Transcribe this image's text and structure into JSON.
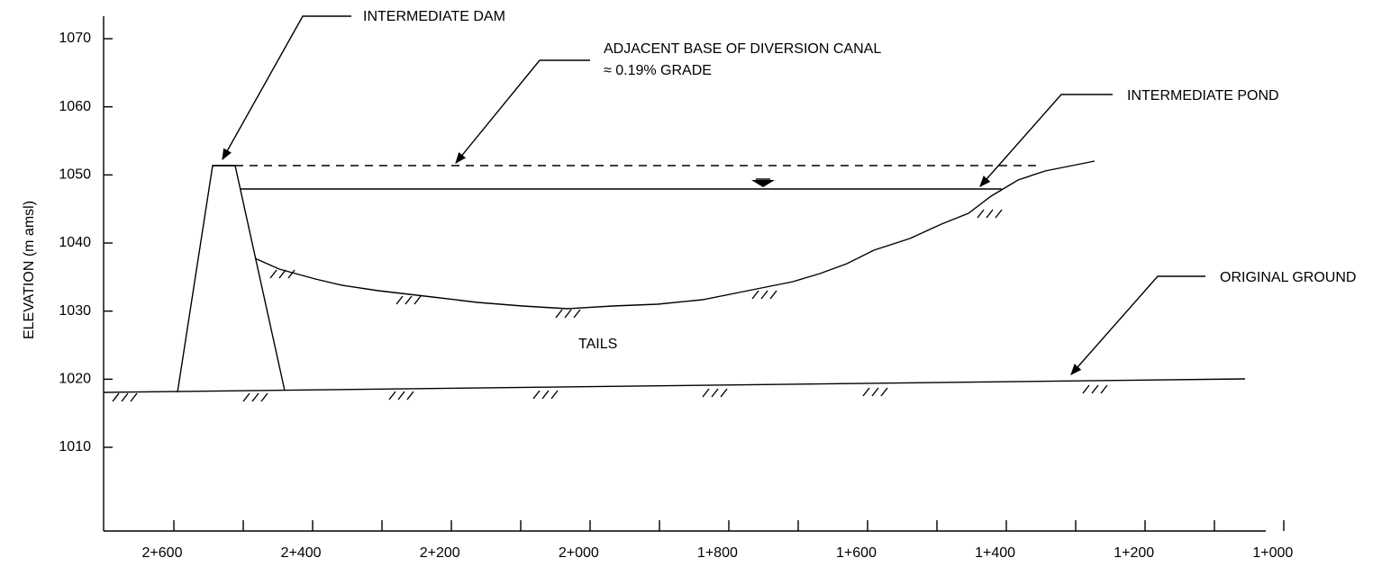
{
  "axes": {
    "y_label": "ELEVATION (m amsl)",
    "yticks": [
      1010,
      1020,
      1030,
      1040,
      1050,
      1060,
      1070
    ],
    "xticks": [
      "2+600",
      "2+400",
      "2+200",
      "2+000",
      "1+800",
      "1+600",
      "1+400",
      "1+200",
      "1+000"
    ]
  },
  "annotations": {
    "dam": "INTERMEDIATE DAM",
    "canal": "ADJACENT BASE OF DIVERSION CANAL",
    "canal_grade": "≈ 0.19% GRADE",
    "pond": "INTERMEDIATE POND",
    "ground": "ORIGINAL GROUND",
    "tails": "TAILS"
  }
}
